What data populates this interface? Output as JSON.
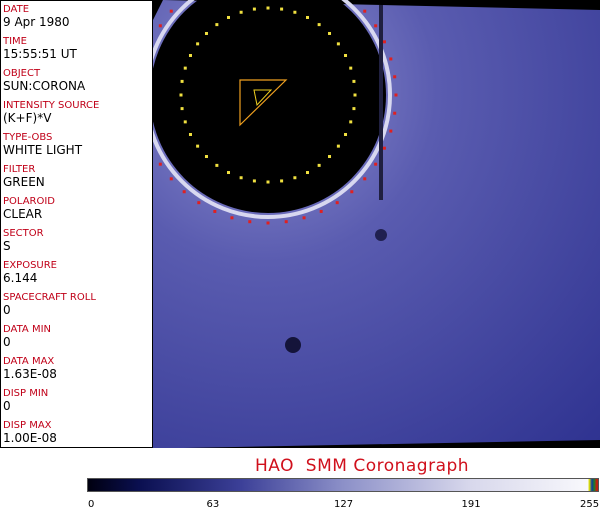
{
  "sidebar": {
    "fields": [
      {
        "label": "DATE",
        "value": "9 Apr 1980"
      },
      {
        "label": "TIME",
        "value": "15:55:51 UT"
      },
      {
        "label": "OBJECT",
        "value": "SUN:CORONA"
      },
      {
        "label": "INTENSITY SOURCE",
        "value": "(K+F)*V"
      },
      {
        "label": "TYPE-OBS",
        "value": "WHITE LIGHT"
      },
      {
        "label": "FILTER",
        "value": "GREEN"
      },
      {
        "label": "POLAROID",
        "value": "CLEAR"
      },
      {
        "label": "SECTOR",
        "value": "S"
      },
      {
        "label": "EXPOSURE",
        "value": "6.144"
      },
      {
        "label": "SPACECRAFT ROLL",
        "value": "0"
      },
      {
        "label": "DATA MIN",
        "value": "0"
      },
      {
        "label": "DATA MAX",
        "value": "1.63E-08"
      },
      {
        "label": "DISP MIN",
        "value": "0"
      },
      {
        "label": "DISP MAX",
        "value": "1.00E-08"
      }
    ]
  },
  "title": "HAO  SMM Coronagraph",
  "colorbar": {
    "ticks": [
      "0",
      "63",
      "127",
      "191",
      "255"
    ]
  },
  "colors": {
    "label": "#c00018",
    "title": "#d0101c"
  }
}
